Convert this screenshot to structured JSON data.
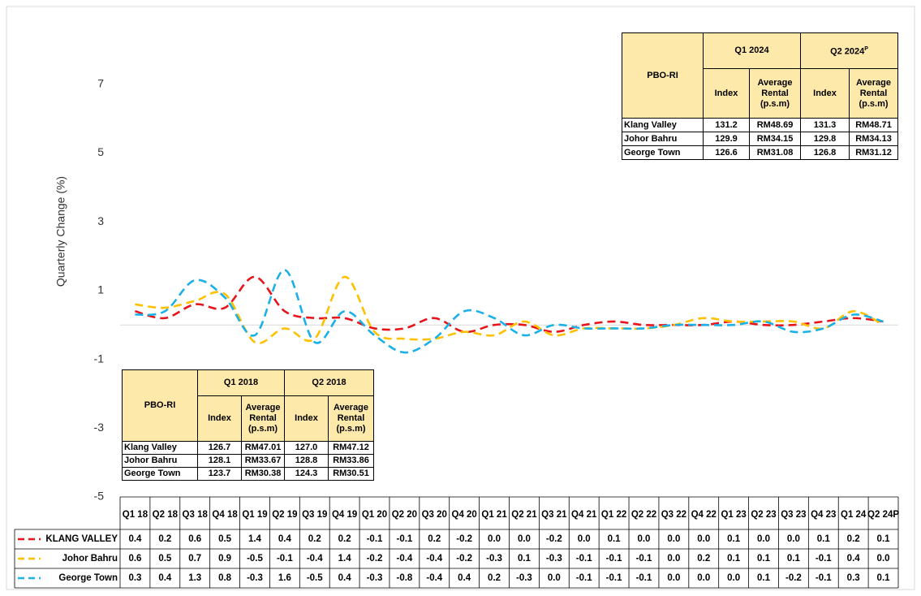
{
  "chart_data": {
    "type": "line",
    "y_label": "Quarterly Change (%)",
    "categories": [
      "Q1 18",
      "Q2 18",
      "Q3 18",
      "Q4 18",
      "Q1 19",
      "Q2 19",
      "Q3 19",
      "Q4 19",
      "Q1 20",
      "Q2 20",
      "Q3 20",
      "Q4 20",
      "Q1 21",
      "Q2 21",
      "Q3 21",
      "Q4 21",
      "Q1 22",
      "Q2 22",
      "Q3 22",
      "Q4 22",
      "Q1 23",
      "Q2 23",
      "Q3 23",
      "Q4 23",
      "Q1 24",
      "Q2 24P"
    ],
    "series": [
      {
        "name": "KLANG VALLEY",
        "color": "#e8141b",
        "values": [
          0.4,
          0.2,
          0.6,
          0.5,
          1.4,
          0.4,
          0.2,
          0.2,
          -0.1,
          -0.1,
          0.2,
          -0.2,
          0.0,
          0.0,
          -0.2,
          0.0,
          0.1,
          0.0,
          0.0,
          0.0,
          0.1,
          0.0,
          0.0,
          0.1,
          0.2,
          0.1
        ],
        "value_labels": [
          "0.4",
          "0.2",
          "0.6",
          "0.5",
          "1.4",
          "0.4",
          "0.2",
          "0.2",
          "-0.1",
          "-0.1",
          "0.2",
          "-0.2",
          "0.0",
          "0.0",
          "-0.2",
          "0.0",
          "0.1",
          "0.0",
          "0.0",
          "0.0",
          "0.1",
          "0.0",
          "0.0",
          "0.1",
          "0.2",
          "0.1"
        ]
      },
      {
        "name": "Johor Bahru",
        "color": "#ffc000",
        "values": [
          0.6,
          0.5,
          0.7,
          0.9,
          -0.5,
          -0.1,
          -0.4,
          1.4,
          -0.2,
          -0.4,
          -0.4,
          -0.2,
          -0.3,
          0.1,
          -0.3,
          -0.1,
          -0.1,
          -0.1,
          0.0,
          0.2,
          0.1,
          0.1,
          0.1,
          -0.1,
          0.4,
          0.0
        ],
        "value_labels": [
          "0.6",
          "0.5",
          "0.7",
          "0.9",
          "-0.5",
          "-0.1",
          "-0.4",
          "1.4",
          "-0.2",
          "-0.4",
          "-0.4",
          "-0.2",
          "-0.3",
          "0.1",
          "-0.3",
          "-0.1",
          "-0.1",
          "-0.1",
          "0.0",
          "0.2",
          "0.1",
          "0.1",
          "0.1",
          "-0.1",
          "0.4",
          "0.0"
        ]
      },
      {
        "name": "George Town",
        "color": "#1ab0e8",
        "values": [
          0.3,
          0.4,
          1.3,
          0.8,
          -0.3,
          1.6,
          -0.5,
          0.4,
          -0.3,
          -0.8,
          -0.4,
          0.4,
          0.2,
          -0.3,
          0.0,
          -0.1,
          -0.1,
          -0.1,
          0.0,
          0.0,
          0.0,
          0.1,
          -0.2,
          -0.1,
          0.3,
          0.1
        ],
        "value_labels": [
          "0.3",
          "0.4",
          "1.3",
          "0.8",
          "-0.3",
          "1.6",
          "-0.5",
          "0.4",
          "-0.3",
          "-0.8",
          "-0.4",
          "0.4",
          "0.2",
          "-0.3",
          "0.0",
          "-0.1",
          "-0.1",
          "-0.1",
          "0.0",
          "0.0",
          "0.0",
          "0.1",
          "-0.2",
          "-0.1",
          "0.3",
          "0.1"
        ]
      }
    ],
    "ylim": [
      -5,
      9
    ],
    "yticks": [
      -5,
      -3,
      -1,
      1,
      3,
      5,
      7
    ]
  },
  "tables": [
    {
      "header": "PBO-RI",
      "periods": [
        {
          "label": "Q1 2024"
        },
        {
          "label": "Q2 2024",
          "superscript": "P"
        }
      ],
      "subheaders": [
        "Index",
        "Average Rental (p.s.m)"
      ],
      "rows": [
        [
          "Klang Valley",
          "131.2",
          "RM48.69",
          "131.3",
          "RM48.71"
        ],
        [
          "Johor Bahru",
          "129.9",
          "RM34.15",
          "129.8",
          "RM34.13"
        ],
        [
          "George Town",
          "126.6",
          "RM31.08",
          "126.8",
          "RM31.12"
        ]
      ]
    },
    {
      "header": "PBO-RI",
      "periods": [
        {
          "label": "Q1 2018"
        },
        {
          "label": "Q2 2018"
        }
      ],
      "subheaders": [
        "Index",
        "Average Rental (p.s.m)"
      ],
      "rows": [
        [
          "Klang Valley",
          "126.7",
          "RM47.01",
          "127.0",
          "RM47.12"
        ],
        [
          "Johor Bahru",
          "128.1",
          "RM33.67",
          "128.8",
          "RM33.86"
        ],
        [
          "George Town",
          "123.7",
          "RM30.38",
          "124.3",
          "RM30.51"
        ]
      ]
    }
  ]
}
